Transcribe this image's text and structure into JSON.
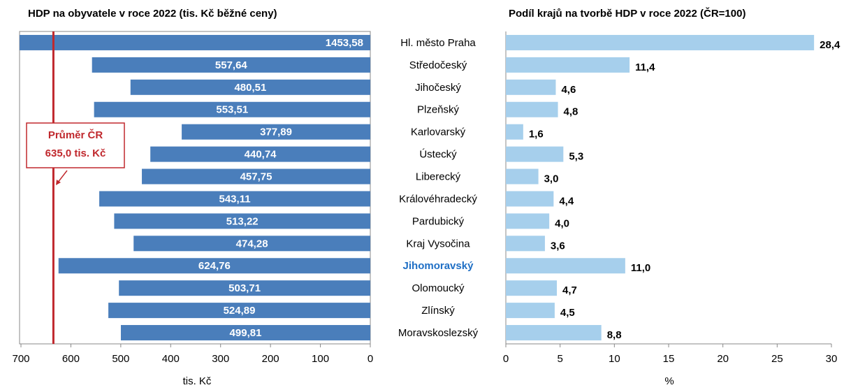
{
  "chart_data": [
    {
      "type": "bar",
      "orientation": "horizontal",
      "title": "HDP na obyvatele v roce 2022 (tis. Kč běžné ceny)",
      "xlabel": "tis. Kč",
      "categories": [
        "Hl. město Praha",
        "Středočeský",
        "Jihočeský",
        "Plzeňský",
        "Karlovarský",
        "Ústecký",
        "Liberecký",
        "Královéhradecký",
        "Pardubický",
        "Kraj Vysočina",
        "Jihomoravský",
        "Olomoucký",
        "Zlínský",
        "Moravskoslezský"
      ],
      "values": [
        1453.58,
        557.64,
        480.51,
        553.51,
        377.89,
        440.74,
        457.75,
        543.11,
        513.22,
        474.28,
        624.76,
        503.71,
        524.89,
        499.81
      ],
      "value_labels": [
        "1453,58",
        "557,64",
        "480,51",
        "553,51",
        "377,89",
        "440,74",
        "457,75",
        "543,11",
        "513,22",
        "474,28",
        "624,76",
        "503,71",
        "524,89",
        "499,81"
      ],
      "color": "#4a7ebb",
      "highlight_index": 10,
      "highlight_color": "#1f6fc5",
      "xlim": [
        700,
        0
      ],
      "xticks": [
        700,
        600,
        500,
        400,
        300,
        200,
        100,
        0
      ],
      "reference_line": {
        "value": 635,
        "color": "#c0282d",
        "label": [
          "Průměr ČR",
          "635,0 tis. Kč"
        ]
      }
    },
    {
      "type": "bar",
      "orientation": "horizontal",
      "title": "Podíl krajů na tvorbě HDP v roce 2022 (ČR=100)",
      "xlabel": "%",
      "values": [
        28.4,
        11.4,
        4.6,
        4.8,
        1.6,
        5.3,
        3.0,
        4.4,
        4.0,
        3.6,
        11.0,
        4.7,
        4.5,
        8.8
      ],
      "value_labels": [
        "28,4",
        "11,4",
        "4,6",
        "4,8",
        "1,6",
        "5,3",
        "3,0",
        "4,4",
        "4,0",
        "3,6",
        "11,0",
        "4,7",
        "4,5",
        "8,8"
      ],
      "color": "#a6cfec",
      "xlim": [
        0,
        30
      ],
      "xticks": [
        0,
        5,
        10,
        15,
        20,
        25,
        30
      ]
    }
  ]
}
